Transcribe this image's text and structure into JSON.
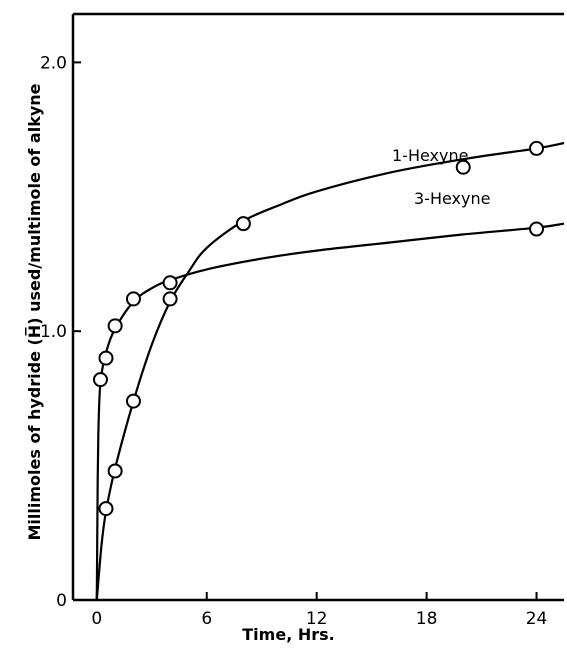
{
  "chart_data": {
    "type": "scatter",
    "xlabel": "Time, Hrs.",
    "ylabel": "Millimoles of hydride (H̅) used/multimole of alkyne",
    "xlim": [
      -1.3,
      25.5
    ],
    "ylim": [
      0,
      2.18
    ],
    "x_ticks": [
      0,
      6,
      12,
      18,
      24
    ],
    "y_ticks": [
      0,
      1.0,
      2.0
    ],
    "x_tick_labels": [
      "0",
      "6",
      "12",
      "18",
      "24"
    ],
    "y_tick_labels": [
      "0",
      "1.0",
      "2.0"
    ],
    "grid": false,
    "legend": "labels placed next to curves",
    "series": [
      {
        "name": "1-Hexyne",
        "points": [
          {
            "x": 0.5,
            "y": 0.34
          },
          {
            "x": 1.0,
            "y": 0.48
          },
          {
            "x": 2.0,
            "y": 0.74
          },
          {
            "x": 4.0,
            "y": 1.12
          },
          {
            "x": 8.0,
            "y": 1.4
          },
          {
            "x": 20.0,
            "y": 1.61
          },
          {
            "x": 24.0,
            "y": 1.68
          }
        ],
        "curve": [
          {
            "x": 0.0,
            "y": 0.0
          },
          {
            "x": 0.25,
            "y": 0.2
          },
          {
            "x": 0.5,
            "y": 0.33
          },
          {
            "x": 1.0,
            "y": 0.49
          },
          {
            "x": 2.0,
            "y": 0.74
          },
          {
            "x": 3.0,
            "y": 0.95
          },
          {
            "x": 4.0,
            "y": 1.11
          },
          {
            "x": 5.0,
            "y": 1.22
          },
          {
            "x": 6.0,
            "y": 1.31
          },
          {
            "x": 8.0,
            "y": 1.41
          },
          {
            "x": 10.0,
            "y": 1.47
          },
          {
            "x": 12.0,
            "y": 1.52
          },
          {
            "x": 16.0,
            "y": 1.59
          },
          {
            "x": 20.0,
            "y": 1.64
          },
          {
            "x": 24.0,
            "y": 1.68
          },
          {
            "x": 25.5,
            "y": 1.7
          }
        ]
      },
      {
        "name": "3-Hexyne",
        "points": [
          {
            "x": 0.2,
            "y": 0.82
          },
          {
            "x": 0.5,
            "y": 0.9
          },
          {
            "x": 1.0,
            "y": 1.02
          },
          {
            "x": 2.0,
            "y": 1.12
          },
          {
            "x": 4.0,
            "y": 1.18
          },
          {
            "x": 24.0,
            "y": 1.38
          }
        ],
        "curve": [
          {
            "x": 0.0,
            "y": 0.0
          },
          {
            "x": 0.05,
            "y": 0.45
          },
          {
            "x": 0.1,
            "y": 0.66
          },
          {
            "x": 0.2,
            "y": 0.81
          },
          {
            "x": 0.5,
            "y": 0.92
          },
          {
            "x": 1.0,
            "y": 1.01
          },
          {
            "x": 2.0,
            "y": 1.11
          },
          {
            "x": 3.0,
            "y": 1.16
          },
          {
            "x": 4.0,
            "y": 1.19
          },
          {
            "x": 6.0,
            "y": 1.23
          },
          {
            "x": 9.0,
            "y": 1.27
          },
          {
            "x": 12.0,
            "y": 1.3
          },
          {
            "x": 16.0,
            "y": 1.33
          },
          {
            "x": 20.0,
            "y": 1.36
          },
          {
            "x": 24.0,
            "y": 1.385
          },
          {
            "x": 25.5,
            "y": 1.4
          }
        ]
      }
    ]
  }
}
